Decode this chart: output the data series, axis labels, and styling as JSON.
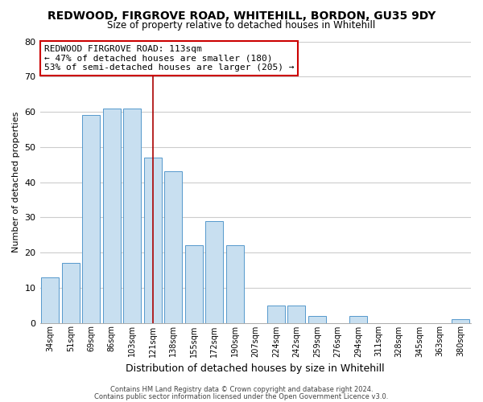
{
  "title": "REDWOOD, FIRGROVE ROAD, WHITEHILL, BORDON, GU35 9DY",
  "subtitle": "Size of property relative to detached houses in Whitehill",
  "xlabel": "Distribution of detached houses by size in Whitehill",
  "ylabel": "Number of detached properties",
  "bar_color": "#c8dff0",
  "bar_edge_color": "#5599cc",
  "categories": [
    "34sqm",
    "51sqm",
    "69sqm",
    "86sqm",
    "103sqm",
    "121sqm",
    "138sqm",
    "155sqm",
    "172sqm",
    "190sqm",
    "207sqm",
    "224sqm",
    "242sqm",
    "259sqm",
    "276sqm",
    "294sqm",
    "311sqm",
    "328sqm",
    "345sqm",
    "363sqm",
    "380sqm"
  ],
  "values": [
    13,
    17,
    59,
    61,
    61,
    47,
    43,
    22,
    29,
    22,
    0,
    5,
    5,
    2,
    0,
    2,
    0,
    0,
    0,
    0,
    1
  ],
  "ylim": [
    0,
    80
  ],
  "yticks": [
    0,
    10,
    20,
    30,
    40,
    50,
    60,
    70,
    80
  ],
  "marker_x_label": "121sqm",
  "marker_color": "#aa0000",
  "annotation_title": "REDWOOD FIRGROVE ROAD: 113sqm",
  "annotation_line1": "← 47% of detached houses are smaller (180)",
  "annotation_line2": "53% of semi-detached houses are larger (205) →",
  "annotation_box_color": "#ffffff",
  "annotation_box_edge": "#cc0000",
  "footer_line1": "Contains HM Land Registry data © Crown copyright and database right 2024.",
  "footer_line2": "Contains public sector information licensed under the Open Government Licence v3.0.",
  "background_color": "#ffffff",
  "plot_background": "#ffffff",
  "grid_color": "#cccccc"
}
